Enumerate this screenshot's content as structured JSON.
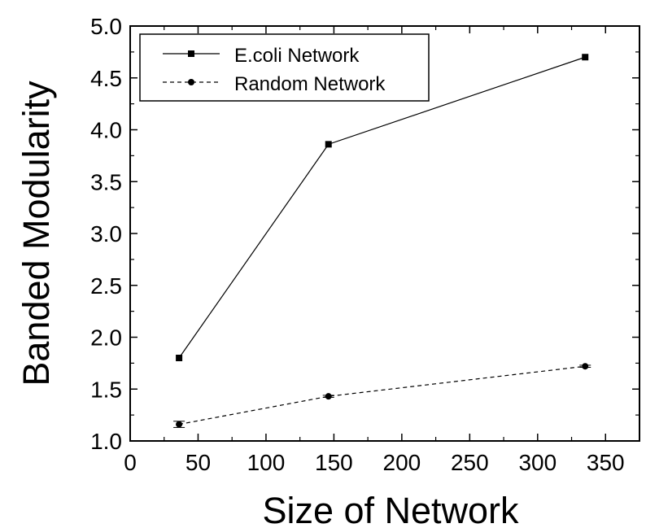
{
  "chart_data": {
    "type": "line",
    "xlabel": "Size of Network",
    "ylabel": "Banded Modularity",
    "xlim": [
      0,
      375
    ],
    "ylim": [
      1.0,
      5.0
    ],
    "xticks": [
      "0",
      "50",
      "100",
      "150",
      "200",
      "250",
      "300",
      "350"
    ],
    "yticks": [
      "1.0",
      "1.5",
      "2.0",
      "2.5",
      "3.0",
      "3.5",
      "4.0",
      "4.5",
      "5.0"
    ],
    "grid": false,
    "legend_position": "top-left",
    "series": [
      {
        "name": "E.coli Network",
        "marker": "square",
        "line_style": "solid",
        "color": "#000000",
        "x": [
          36,
          146,
          335
        ],
        "y": [
          1.8,
          3.86,
          4.7
        ],
        "yerr": [
          0,
          0,
          0
        ]
      },
      {
        "name": "Random Network",
        "marker": "circle",
        "line_style": "dashed",
        "color": "#000000",
        "x": [
          36,
          146,
          335
        ],
        "y": [
          1.16,
          1.43,
          1.72
        ],
        "yerr": [
          0.03,
          0.01,
          0.01
        ]
      }
    ]
  }
}
